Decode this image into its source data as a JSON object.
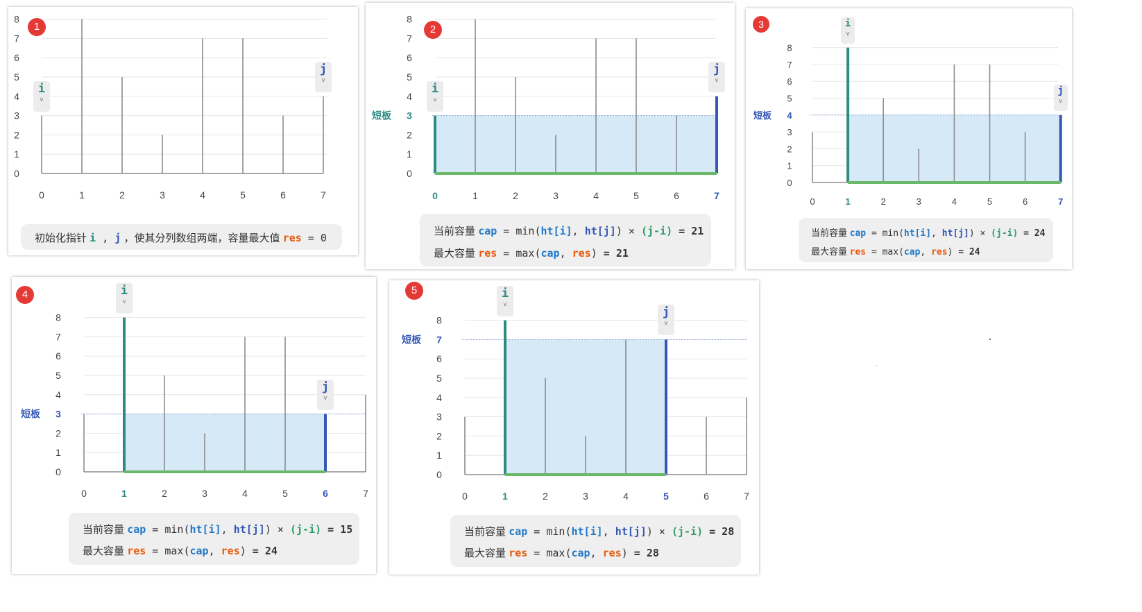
{
  "colors": {
    "i_color": "#2e8b82",
    "j_color": "#3557b5",
    "cap_color": "#1f78c8",
    "res_color": "#e8590c",
    "water": "#d5e9f7",
    "base": "#6ab86a",
    "badge": "#e53935"
  },
  "heights": [
    3,
    8,
    5,
    2,
    7,
    7,
    3,
    4
  ],
  "y_ticks": [
    "0",
    "1",
    "2",
    "3",
    "4",
    "5",
    "6",
    "7",
    "8"
  ],
  "x_ticks": [
    "0",
    "1",
    "2",
    "3",
    "4",
    "5",
    "6",
    "7"
  ],
  "pointer_i": "i",
  "pointer_j": "j",
  "pointer_arrow": "v",
  "panels": [
    {
      "badge": "1",
      "i": 0,
      "j": 7,
      "short": null,
      "short_label": "",
      "note": {
        "pre": "初始化指针 ",
        "i": "i",
        ",": " , ",
        "j": "j",
        "mid": " ，使其分列数组两端，容量最大值 ",
        "res": "res",
        "eq": " = 0"
      }
    },
    {
      "badge": "2",
      "i": 0,
      "j": 7,
      "short": 3,
      "short_label": "短板",
      "short_color": "#2e8b82",
      "line1": {
        "label": "当前容量",
        "var": "cap",
        "eq": " = ",
        "fn": "min(",
        "a": "ht[i]",
        "comma": ", ",
        "b": "ht[j]",
        "close": ")",
        "times": " × ",
        "expr": "(j-i)",
        "result": " = 21"
      },
      "line2": {
        "label": "最大容量",
        "var": "res",
        "eq": " = ",
        "fn": "max(",
        "a": "cap",
        "comma": ", ",
        "b": "res",
        "close": ")",
        "result": " = 21"
      }
    },
    {
      "badge": "3",
      "i": 1,
      "j": 7,
      "short": 4,
      "short_label": "短板",
      "short_color": "#3557b5",
      "line1": {
        "label": "当前容量",
        "var": "cap",
        "eq": " = ",
        "fn": "min(",
        "a": "ht[i]",
        "comma": ", ",
        "b": "ht[j]",
        "close": ")",
        "times": " × ",
        "expr": "(j-i)",
        "result": " = 24"
      },
      "line2": {
        "label": "最大容量",
        "var": "res",
        "eq": " = ",
        "fn": "max(",
        "a": "cap",
        "comma": ", ",
        "b": "res",
        "close": ")",
        "result": " = 24"
      }
    },
    {
      "badge": "4",
      "i": 1,
      "j": 6,
      "short": 3,
      "short_label": "短板",
      "short_color": "#3557b5",
      "line1": {
        "label": "当前容量",
        "var": "cap",
        "eq": " = ",
        "fn": "min(",
        "a": "ht[i]",
        "comma": ", ",
        "b": "ht[j]",
        "close": ")",
        "times": " × ",
        "expr": "(j-i)",
        "result": " = 15"
      },
      "line2": {
        "label": "最大容量",
        "var": "res",
        "eq": " = ",
        "fn": "max(",
        "a": "cap",
        "comma": ", ",
        "b": "res",
        "close": ")",
        "result": " = 24"
      }
    },
    {
      "badge": "5",
      "i": 1,
      "j": 5,
      "short": 7,
      "short_label": "短板",
      "short_color": "#3557b5",
      "line1": {
        "label": "当前容量",
        "var": "cap",
        "eq": " = ",
        "fn": "min(",
        "a": "ht[i]",
        "comma": ", ",
        "b": "ht[j]",
        "close": ")",
        "times": " × ",
        "expr": "(j-i)",
        "result": " = 28"
      },
      "line2": {
        "label": "最大容量",
        "var": "res",
        "eq": " = ",
        "fn": "max(",
        "a": "cap",
        "comma": ", ",
        "b": "res",
        "close": ")",
        "result": " = 28"
      }
    }
  ]
}
